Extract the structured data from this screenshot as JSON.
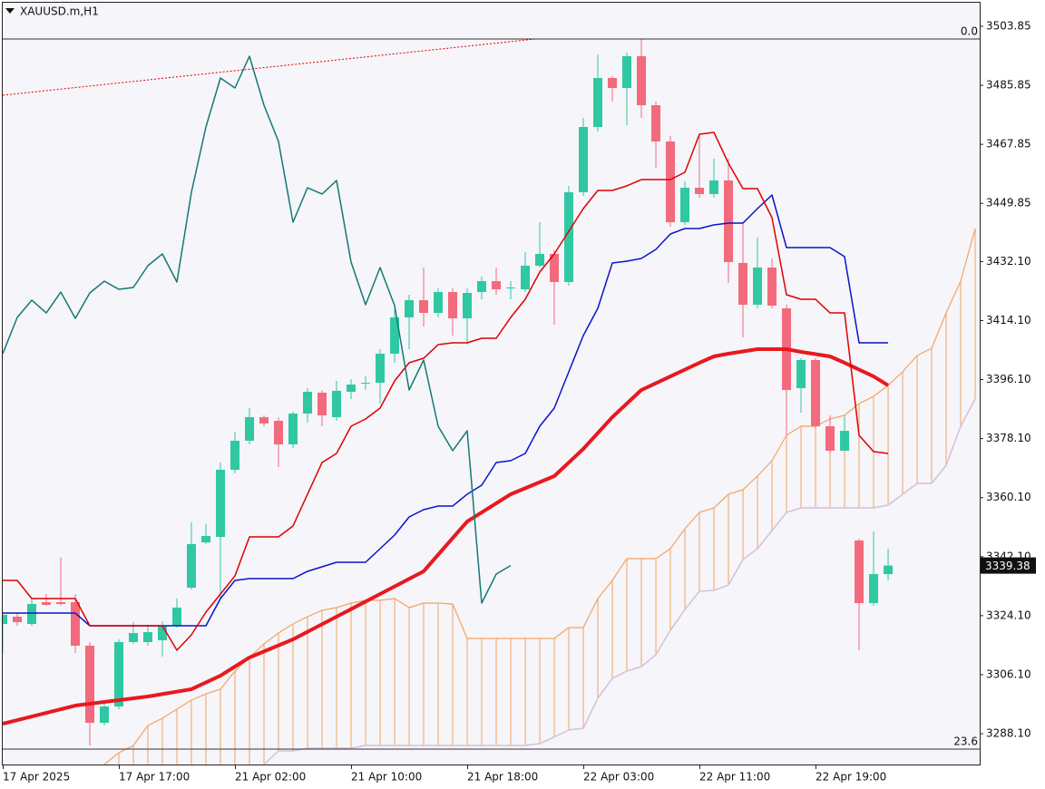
{
  "chart_data": {
    "type": "candlestick",
    "title": "XAUUSD.m,H1",
    "ylim": [
      3278.7,
      3511.04
    ],
    "yticks": [
      3503.85,
      3485.85,
      3467.85,
      3449.85,
      {
        "value": 3432.1,
        "label": "3432.10"
      },
      {
        "value": 3414.1,
        "label": "3414.10"
      },
      {
        "value": 3396.1,
        "label": "3396.10"
      },
      {
        "value": 3378.1,
        "label": "3378.10"
      },
      {
        "value": 3360.1,
        "label": "3360.10"
      },
      {
        "value": 3342.1,
        "label": "3342.10"
      },
      {
        "value": 3324.1,
        "label": "3324.10"
      },
      {
        "value": 3306.1,
        "label": "3306.10"
      },
      {
        "value": 3288.1,
        "label": "3288.10"
      }
    ],
    "xlim": [
      0,
      67.31
    ],
    "xticks": [
      {
        "value": 0,
        "label": "17 Apr 2025"
      },
      {
        "value": 8,
        "label": "17 Apr 17:00"
      },
      {
        "value": 16,
        "label": "21 Apr 02:00"
      },
      {
        "value": 24,
        "label": "21 Apr 10:00"
      },
      {
        "value": 32,
        "label": "21 Apr 18:00"
      },
      {
        "value": 40,
        "label": "22 Apr 03:00"
      },
      {
        "value": 48,
        "label": "22 Apr 11:00"
      },
      {
        "value": 56,
        "label": "22 Apr 19:00"
      }
    ],
    "up_color": "#2fc8a2",
    "down_color": "#f26a7c",
    "open": [
      3321.57,
      3323.78,
      3321.57,
      3328.21,
      3328.21,
      3328.21,
      3314.93,
      3291.42,
      3296.4,
      3316.04,
      3316.04,
      3316.59,
      3321.02,
      3332.63,
      3346.46,
      3348.12,
      3368.59,
      3377.44,
      3384.63,
      3383.53,
      3376.34,
      3385.74,
      3392.1,
      3384.63,
      3392.38,
      3394.87,
      3395.14,
      3404.0,
      3415.06,
      3420.32,
      3416.44,
      3422.8,
      3414.78,
      3422.8,
      3426.12,
      3423.91,
      3423.63,
      3430.83,
      3434.42,
      3425.85,
      3453.23,
      3473.15,
      3488.08,
      3485.04,
      3494.72,
      3479.78,
      3468.72,
      3444.1,
      3454.61,
      3452.68,
      3456.83,
      3431.66,
      3418.93,
      3430.27,
      3417.83,
      3393.49,
      3402.06,
      3381.87,
      3374.4,
      3347.02,
      3327.93,
      3336.78
    ],
    "high": [
      3324.89,
      3324.89,
      3329.31,
      3330.7,
      3341.76,
      3330.7,
      3316.04,
      3297.5,
      3316.87,
      3322.12,
      3321.02,
      3322.4,
      3329.31,
      3352.55,
      3352.0,
      3370.8,
      3380.21,
      3387.4,
      3385.19,
      3384.63,
      3386.29,
      3393.49,
      3392.93,
      3395.7,
      3396.25,
      3397.08,
      3405.38,
      3417.83,
      3421.97,
      3430.27,
      3423.91,
      3423.91,
      3423.91,
      3427.51,
      3430.27,
      3426.12,
      3434.98,
      3444.1,
      3435.53,
      3455.17,
      3475.91,
      3495.27,
      3488.64,
      3495.83,
      3499.98,
      3480.89,
      3470.38,
      3456.55,
      3470.38,
      3463.46,
      3463.46,
      3444.1,
      3439.4,
      3433.04,
      3418.93,
      3402.61,
      3402.61,
      3385.19,
      3384.63,
      3347.57,
      3349.78,
      3344.53
    ],
    "low": [
      3312.72,
      3321.02,
      3321.02,
      3327.1,
      3327.1,
      3312.72,
      3284.5,
      3290.59,
      3295.57,
      3315.48,
      3314.93,
      3311.61,
      3320.46,
      3332.08,
      3345.91,
      3329.31,
      3367.48,
      3376.34,
      3381.87,
      3369.42,
      3375.23,
      3382.97,
      3381.87,
      3383.53,
      3390.17,
      3392.93,
      3388.78,
      3401.23,
      3405.38,
      3412.29,
      3415.06,
      3409.53,
      3406.76,
      3420.59,
      3421.97,
      3420.59,
      3422.8,
      3430.27,
      3412.85,
      3424.74,
      3452.12,
      3471.76,
      3480.89,
      3473.7,
      3475.91,
      3460.7,
      3442.72,
      3443.27,
      3451.57,
      3451.57,
      3425.57,
      3408.97,
      3417.83,
      3417.83,
      3379.1,
      3386.02,
      3381.31,
      3373.57,
      3374.4,
      3313.55,
      3327.1,
      3334.85
    ],
    "close": [
      3324.34,
      3322.12,
      3327.65,
      3327.38,
      3327.65,
      3314.93,
      3291.42,
      3296.4,
      3316.04,
      3318.8,
      3319.08,
      3321.02,
      3326.55,
      3345.91,
      3348.4,
      3368.59,
      3377.44,
      3384.63,
      3382.7,
      3376.34,
      3385.74,
      3392.38,
      3385.19,
      3392.66,
      3394.59,
      3395.14,
      3404.0,
      3415.06,
      3420.32,
      3416.44,
      3422.8,
      3414.78,
      3422.53,
      3426.12,
      3423.63,
      3424.19,
      3430.83,
      3434.42,
      3425.85,
      3453.23,
      3473.15,
      3488.08,
      3485.04,
      3494.72,
      3479.78,
      3468.72,
      3444.1,
      3454.61,
      3452.68,
      3456.83,
      3431.93,
      3418.93,
      3430.27,
      3418.66,
      3392.93,
      3402.06,
      3381.87,
      3374.4,
      3380.48,
      3327.93,
      3336.78,
      3339.38
    ],
    "series": [
      {
        "color": "#f4a460",
        "width": 1.2,
        "hatch": true,
        "values": [
          null,
          null,
          null,
          null,
          null,
          null,
          null,
          3278.7,
          3282.29,
          3284.5,
          3290.59,
          3292.8,
          3295.57,
          3298.34,
          3300.27,
          3301.66,
          3307.19,
          3311.34,
          3315.48,
          3318.8,
          3321.57,
          3323.78,
          3325.72,
          3326.55,
          3327.93,
          3328.76,
          3328.76,
          3329.31,
          3326.55,
          3327.93,
          3327.93,
          3327.65,
          3317.14,
          3317.14,
          3317.14,
          3317.14,
          3317.14,
          3317.14,
          3317.14,
          3320.46,
          3320.46,
          3329.31,
          3334.85,
          3341.49,
          3341.49,
          3341.49,
          3344.53,
          3350.61,
          3355.59,
          3356.97,
          3361.13,
          3362.51,
          3366.66,
          3371.36,
          3379.1,
          3381.87,
          3381.87,
          3384.08,
          3385.19,
          3388.78,
          3390.99,
          3394.32,
          3398.46,
          3403.44,
          3405.66,
          3416.44,
          3426.12,
          3442.17
        ]
      },
      {
        "color": "#d8bfd8",
        "width": 1.5,
        "values": [
          null,
          null,
          null,
          null,
          null,
          null,
          null,
          null,
          null,
          null,
          null,
          null,
          null,
          null,
          null,
          null,
          null,
          null,
          3278.7,
          3282.85,
          3282.85,
          3283.68,
          3283.68,
          3283.68,
          3283.68,
          3284.5,
          3284.5,
          3284.5,
          3284.5,
          3284.5,
          3284.5,
          3284.5,
          3284.5,
          3284.5,
          3284.5,
          3284.5,
          3284.5,
          3285.06,
          3287.13,
          3289.21,
          3289.76,
          3298.89,
          3304.97,
          3307.19,
          3308.57,
          3312.16,
          3319.63,
          3325.99,
          3331.53,
          3331.8,
          3333.46,
          3341.21,
          3344.53,
          3350.06,
          3355.59,
          3356.97,
          3356.97,
          3356.97,
          3356.97,
          3356.97,
          3356.97,
          3357.8,
          3361.13,
          3364.45,
          3364.45,
          3369.97,
          3381.87,
          3390.17
        ]
      },
      {
        "color": "#e8191e",
        "width": 4,
        "x": [
          0,
          5,
          10,
          13,
          15,
          17,
          20,
          23,
          26,
          29,
          32,
          35,
          38,
          40,
          42,
          44,
          46,
          48,
          49,
          50,
          52,
          54,
          55,
          57,
          58,
          60,
          61
        ],
        "values": [
          3291.14,
          3296.67,
          3299.44,
          3301.66,
          3305.8,
          3311.34,
          3316.87,
          3323.78,
          3330.7,
          3337.62,
          3352.82,
          3361.13,
          3366.66,
          3374.95,
          3384.63,
          3392.93,
          3397.08,
          3401.23,
          3403.17,
          3404.0,
          3405.38,
          3405.38,
          3404.55,
          3403.17,
          3401.23,
          3397.08,
          3394.32
        ]
      },
      {
        "color": "#0a14c8",
        "width": 1.5,
        "values": [
          3324.89,
          3324.89,
          3324.89,
          3324.89,
          3324.89,
          3324.89,
          3321.02,
          3321.02,
          3321.02,
          3321.02,
          3321.02,
          3321.02,
          3321.02,
          3321.02,
          3321.02,
          3329.31,
          3334.85,
          3335.4,
          3335.4,
          3335.4,
          3335.4,
          3337.62,
          3339.0,
          3340.38,
          3340.38,
          3340.38,
          3344.53,
          3348.68,
          3354.21,
          3356.42,
          3357.52,
          3357.52,
          3361.13,
          3363.89,
          3370.8,
          3371.36,
          3373.57,
          3381.87,
          3387.4,
          3398.46,
          3409.53,
          3417.83,
          3431.66,
          3432.21,
          3433.04,
          3435.8,
          3440.51,
          3442.17,
          3442.17,
          3443.27,
          3443.83,
          3443.83,
          3448.25,
          3452.4,
          3436.36,
          3436.36,
          3436.36,
          3436.36,
          3433.59,
          3407.32,
          3407.32,
          3407.32
        ]
      },
      {
        "color": "#e00000",
        "width": 1.5,
        "values": [
          3334.85,
          3334.85,
          3329.31,
          3329.31,
          3329.31,
          3329.31,
          3321.02,
          3321.02,
          3321.02,
          3321.02,
          3321.02,
          3321.02,
          3313.55,
          3318.25,
          3325.17,
          3330.7,
          3336.23,
          3348.12,
          3348.12,
          3348.12,
          3351.45,
          3361.13,
          3370.8,
          3373.57,
          3381.87,
          3384.08,
          3387.4,
          3395.7,
          3401.23,
          3402.61,
          3406.76,
          3407.32,
          3407.32,
          3408.7,
          3408.7,
          3415.06,
          3420.59,
          3428.89,
          3434.42,
          3441.34,
          3448.25,
          3453.78,
          3453.78,
          3455.17,
          3457.1,
          3457.1,
          3457.1,
          3459.32,
          3470.93,
          3471.49,
          3462.08,
          3454.34,
          3454.34,
          3445.49,
          3421.97,
          3420.59,
          3420.59,
          3416.44,
          3416.44,
          3379.1,
          3374.12,
          3373.57
        ]
      },
      {
        "color": "#137a72",
        "width": 1.5,
        "values": [
          3404.0,
          3415.06,
          3420.32,
          3416.44,
          3422.8,
          3414.78,
          3422.53,
          3426.12,
          3423.63,
          3424.19,
          3430.83,
          3434.42,
          3425.85,
          3453.23,
          3473.15,
          3488.08,
          3485.04,
          3494.72,
          3479.78,
          3468.72,
          3444.1,
          3454.61,
          3452.68,
          3456.83,
          3431.93,
          3418.93,
          3430.27,
          3418.66,
          3392.93,
          3402.06,
          3381.87,
          3374.4,
          3380.48,
          3327.93,
          3336.78,
          3339.38
        ]
      }
    ],
    "trendline": {
      "color": "#e00000",
      "style": "dotted",
      "x": [
        0,
        36.7
      ],
      "values": [
        3482.83,
        3499.98
      ]
    },
    "fib_levels": [
      {
        "value": 3499.98,
        "label": "0.0"
      },
      {
        "value": 3283.4,
        "label": "23.6"
      }
    ],
    "last_price": 3339.38
  }
}
